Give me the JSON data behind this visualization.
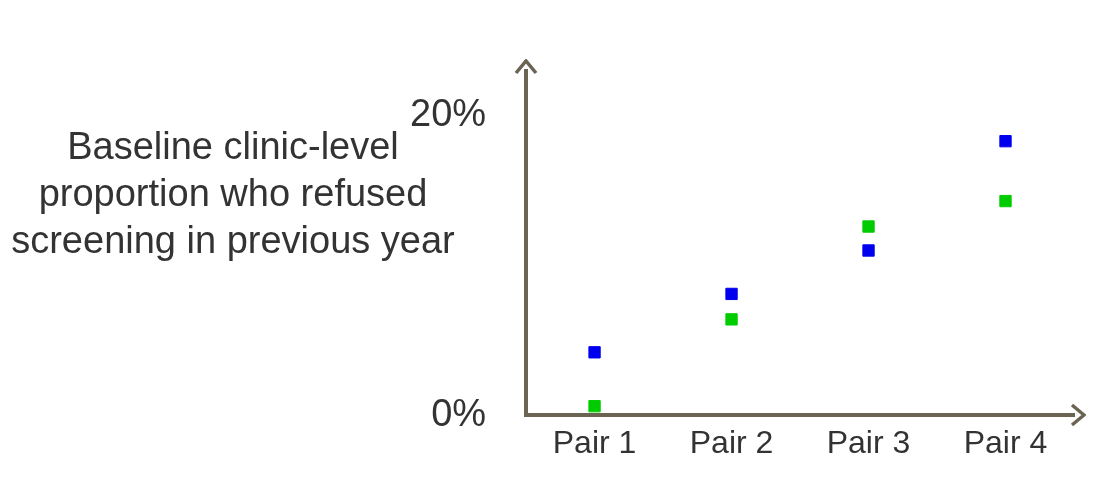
{
  "chart_data": {
    "type": "scatter",
    "ylabel": "Baseline clinic-level proportion who refused screening in previous year",
    "categories": [
      "Pair 1",
      "Pair 2",
      "Pair 3",
      "Pair 4"
    ],
    "series": [
      {
        "color": "#0000ee",
        "values": [
          4.2,
          8.1,
          11.0,
          18.3
        ]
      },
      {
        "color": "#00cc00",
        "values": [
          0.6,
          6.4,
          12.6,
          14.3
        ]
      }
    ],
    "ylim": [
      0,
      23
    ],
    "yticks": [
      {
        "value": 0,
        "label": "0%"
      },
      {
        "value": 20,
        "label": "20%"
      }
    ],
    "grid": false,
    "legend": false,
    "marker": "square"
  }
}
